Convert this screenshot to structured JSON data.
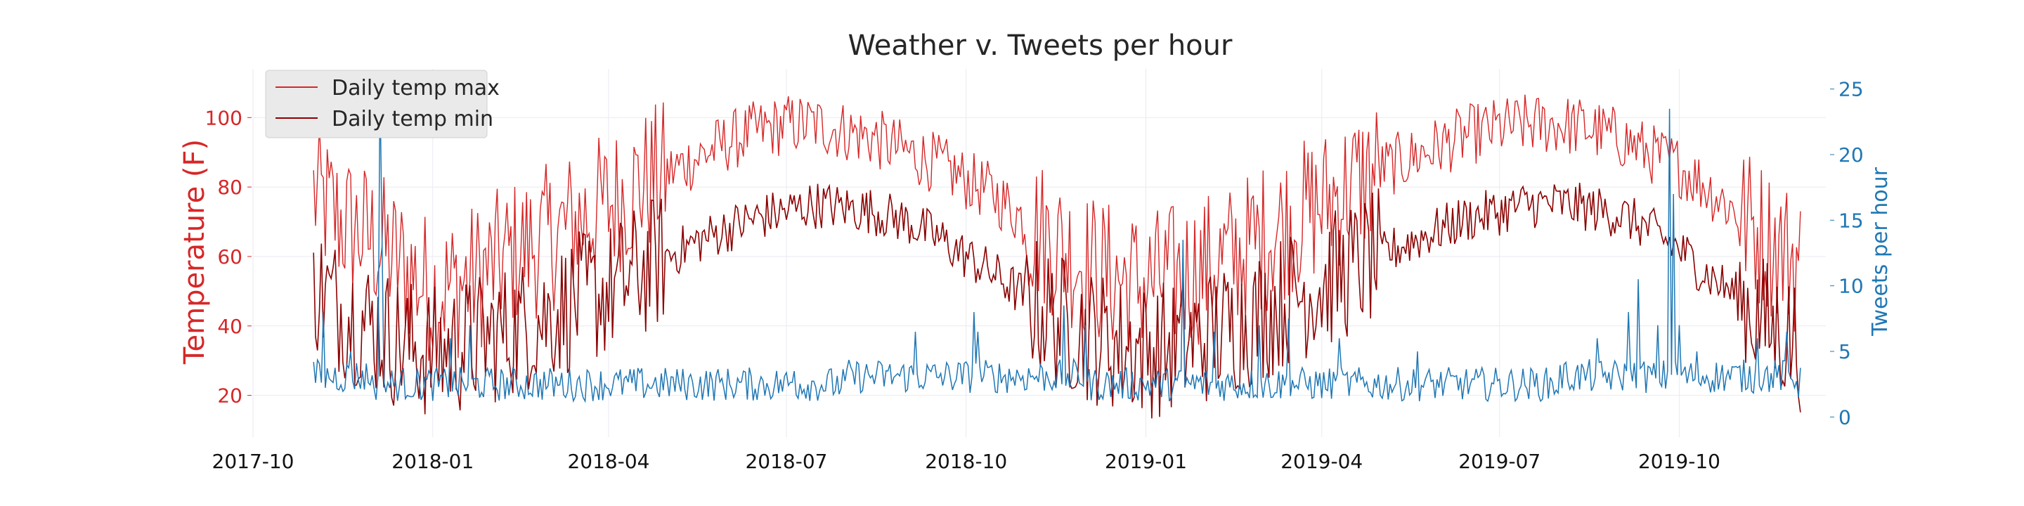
{
  "chart_data": {
    "type": "line",
    "title": "Weather v. Tweets per hour",
    "ylabel_left": "Temperature (F)",
    "ylabel_right": "Tweets per hour",
    "xlabel": "",
    "x_range": [
      "2017-10-01",
      "2019-12-15"
    ],
    "x_data_range": [
      "2017-11-01",
      "2019-12-02"
    ],
    "x_ticks": [
      "2017-10",
      "2018-01",
      "2018-04",
      "2018-07",
      "2018-10",
      "2019-01",
      "2019-04",
      "2019-07",
      "2019-10"
    ],
    "ylim_left": [
      10,
      112
    ],
    "y_ticks_left": [
      20,
      40,
      60,
      80,
      100
    ],
    "ylim_right": [
      -1,
      26
    ],
    "y_ticks_right": [
      0,
      5,
      10,
      15,
      20,
      25
    ],
    "grid": true,
    "legend_position": "top-left",
    "colors": {
      "temp_max": "#d62728",
      "temp_min": "#8b0000",
      "tweets": "#1f77b4",
      "left_axis": "#d62728",
      "right_axis": "#1f77b4",
      "grid": "#eaeaf2"
    },
    "series": [
      {
        "name": "Daily temp max",
        "axis": "left",
        "color": "#d62728",
        "anchors": [
          [
            "2017-11-01",
            78
          ],
          [
            "2017-11-15",
            70
          ],
          [
            "2017-12-01",
            65
          ],
          [
            "2017-12-15",
            58
          ],
          [
            "2018-01-01",
            50
          ],
          [
            "2018-01-15",
            52
          ],
          [
            "2018-02-01",
            57
          ],
          [
            "2018-02-15",
            62
          ],
          [
            "2018-03-01",
            65
          ],
          [
            "2018-03-15",
            70
          ],
          [
            "2018-04-01",
            75
          ],
          [
            "2018-04-15",
            80
          ],
          [
            "2018-05-01",
            84
          ],
          [
            "2018-05-15",
            88
          ],
          [
            "2018-06-01",
            93
          ],
          [
            "2018-06-15",
            96
          ],
          [
            "2018-07-01",
            98
          ],
          [
            "2018-07-15",
            98
          ],
          [
            "2018-08-01",
            96
          ],
          [
            "2018-08-15",
            94
          ],
          [
            "2018-09-01",
            90
          ],
          [
            "2018-09-15",
            87
          ],
          [
            "2018-10-01",
            82
          ],
          [
            "2018-10-15",
            78
          ],
          [
            "2018-11-01",
            70
          ],
          [
            "2018-11-15",
            64
          ],
          [
            "2018-12-01",
            58
          ],
          [
            "2018-12-15",
            54
          ],
          [
            "2019-01-01",
            52
          ],
          [
            "2019-01-15",
            54
          ],
          [
            "2019-02-01",
            57
          ],
          [
            "2019-02-15",
            60
          ],
          [
            "2019-03-01",
            65
          ],
          [
            "2019-03-15",
            70
          ],
          [
            "2019-04-01",
            75
          ],
          [
            "2019-04-15",
            80
          ],
          [
            "2019-05-01",
            85
          ],
          [
            "2019-05-15",
            88
          ],
          [
            "2019-06-01",
            92
          ],
          [
            "2019-06-15",
            95
          ],
          [
            "2019-07-01",
            97
          ],
          [
            "2019-07-15",
            98
          ],
          [
            "2019-08-01",
            98
          ],
          [
            "2019-08-15",
            97
          ],
          [
            "2019-09-01",
            94
          ],
          [
            "2019-09-15",
            90
          ],
          [
            "2019-10-01",
            86
          ],
          [
            "2019-10-15",
            80
          ],
          [
            "2019-11-01",
            72
          ],
          [
            "2019-11-15",
            65
          ],
          [
            "2019-12-02",
            58
          ]
        ]
      },
      {
        "name": "Daily temp min",
        "axis": "left",
        "color": "#8b0000",
        "anchors": [
          [
            "2017-11-01",
            52
          ],
          [
            "2017-11-15",
            45
          ],
          [
            "2017-12-01",
            40
          ],
          [
            "2017-12-15",
            35
          ],
          [
            "2018-01-01",
            32
          ],
          [
            "2018-01-15",
            34
          ],
          [
            "2018-02-01",
            37
          ],
          [
            "2018-02-15",
            40
          ],
          [
            "2018-03-01",
            43
          ],
          [
            "2018-03-15",
            47
          ],
          [
            "2018-04-01",
            50
          ],
          [
            "2018-04-15",
            55
          ],
          [
            "2018-05-01",
            60
          ],
          [
            "2018-05-15",
            64
          ],
          [
            "2018-06-01",
            68
          ],
          [
            "2018-06-15",
            71
          ],
          [
            "2018-07-01",
            73
          ],
          [
            "2018-07-15",
            75
          ],
          [
            "2018-08-01",
            74
          ],
          [
            "2018-08-15",
            73
          ],
          [
            "2018-09-01",
            70
          ],
          [
            "2018-09-15",
            66
          ],
          [
            "2018-10-01",
            60
          ],
          [
            "2018-10-15",
            55
          ],
          [
            "2018-11-01",
            48
          ],
          [
            "2018-11-15",
            42
          ],
          [
            "2018-12-01",
            38
          ],
          [
            "2018-12-15",
            35
          ],
          [
            "2019-01-01",
            33
          ],
          [
            "2019-01-15",
            34
          ],
          [
            "2019-02-01",
            37
          ],
          [
            "2019-02-15",
            40
          ],
          [
            "2019-03-01",
            43
          ],
          [
            "2019-03-15",
            48
          ],
          [
            "2019-04-01",
            52
          ],
          [
            "2019-04-15",
            56
          ],
          [
            "2019-05-01",
            60
          ],
          [
            "2019-05-15",
            64
          ],
          [
            "2019-06-01",
            68
          ],
          [
            "2019-06-15",
            71
          ],
          [
            "2019-07-01",
            73
          ],
          [
            "2019-07-15",
            75
          ],
          [
            "2019-08-01",
            75
          ],
          [
            "2019-08-15",
            74
          ],
          [
            "2019-09-01",
            72
          ],
          [
            "2019-09-15",
            68
          ],
          [
            "2019-10-01",
            62
          ],
          [
            "2019-10-15",
            55
          ],
          [
            "2019-11-01",
            48
          ],
          [
            "2019-11-15",
            40
          ],
          [
            "2019-12-02",
            35
          ]
        ]
      },
      {
        "name": "",
        "axis": "right",
        "color": "#1f77b4",
        "baseline": 2.5,
        "spikes": [
          [
            "2017-11-06",
            8
          ],
          [
            "2017-11-20",
            5
          ],
          [
            "2017-12-05",
            25.5
          ],
          [
            "2017-12-06",
            14
          ],
          [
            "2018-01-10",
            6
          ],
          [
            "2018-01-20",
            7
          ],
          [
            "2018-07-05",
            3.5
          ],
          [
            "2018-09-05",
            6.5
          ],
          [
            "2018-10-05",
            8
          ],
          [
            "2018-10-07",
            6.5
          ],
          [
            "2018-11-20",
            8.5
          ],
          [
            "2018-12-01",
            7
          ],
          [
            "2019-01-20",
            13.5
          ],
          [
            "2019-02-05",
            6.5
          ],
          [
            "2019-02-28",
            7
          ],
          [
            "2019-03-15",
            7.5
          ],
          [
            "2019-04-10",
            6
          ],
          [
            "2019-05-20",
            5
          ],
          [
            "2019-08-20",
            6
          ],
          [
            "2019-09-05",
            8
          ],
          [
            "2019-09-10",
            10.5
          ],
          [
            "2019-09-20",
            7
          ],
          [
            "2019-09-26",
            23.5
          ],
          [
            "2019-09-28",
            17
          ],
          [
            "2019-10-01",
            7
          ],
          [
            "2019-10-10",
            5
          ],
          [
            "2019-11-10",
            6
          ],
          [
            "2019-11-25",
            6.5
          ]
        ]
      }
    ]
  }
}
